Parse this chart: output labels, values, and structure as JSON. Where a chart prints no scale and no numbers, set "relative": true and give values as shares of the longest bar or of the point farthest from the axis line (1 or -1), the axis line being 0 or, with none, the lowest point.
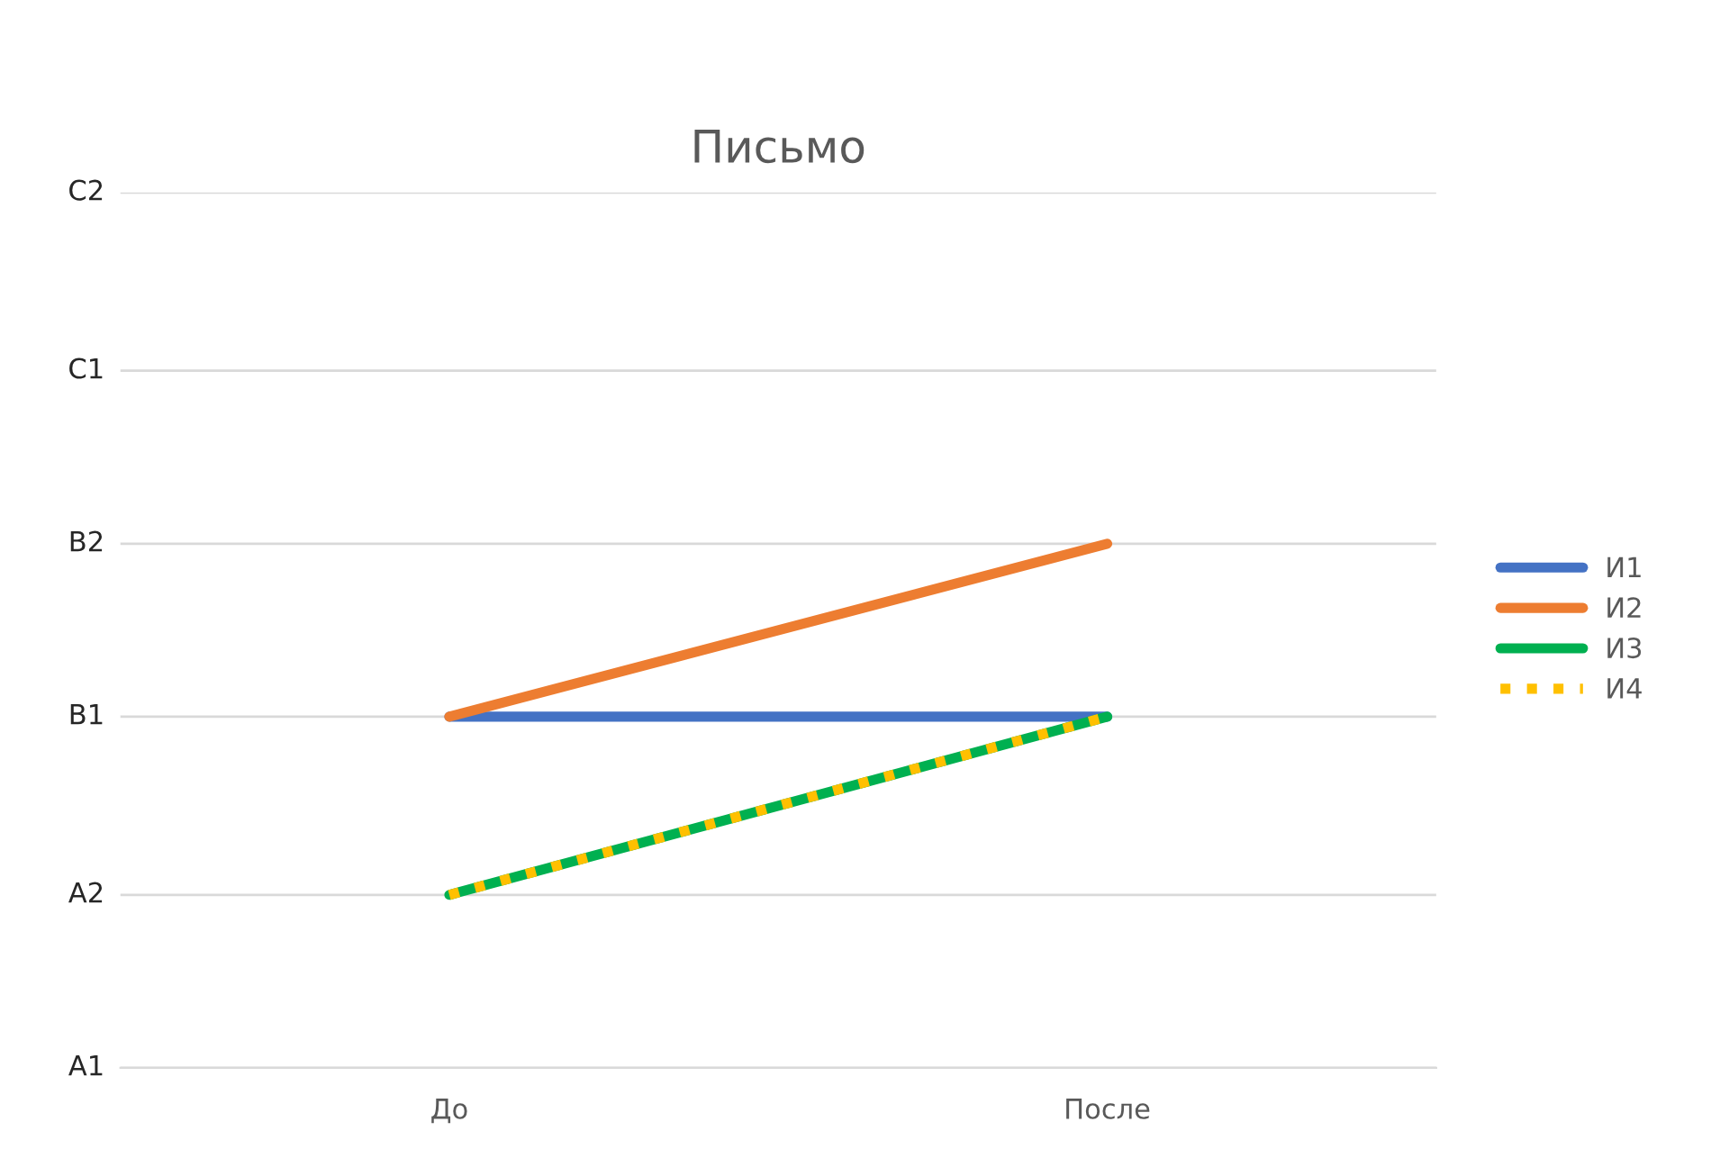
{
  "chart_data": {
    "type": "line",
    "title": "Письмо",
    "relative": true,
    "categories": [
      "До",
      "После"
    ],
    "series": [
      {
        "name": "И1",
        "color": "#4472c4",
        "values": [
          0.67,
          0.67
        ],
        "line_style": "solid"
      },
      {
        "name": "И2",
        "color": "#ed7d31",
        "values": [
          0.67,
          1
        ],
        "line_style": "solid"
      },
      {
        "name": "И3",
        "color": "#00b050",
        "values": [
          0.33,
          0.67
        ],
        "line_style": "solid"
      },
      {
        "name": "И4",
        "color": "#ffc000",
        "values": [
          0.33,
          0.67
        ],
        "line_style": "dotted"
      }
    ],
    "ref_lines": [
      {
        "axis": "y",
        "value": 0,
        "label": "A1",
        "color": "#d9d9d9"
      },
      {
        "axis": "y",
        "value": 0.33,
        "label": "A2",
        "color": "#d9d9d9"
      },
      {
        "axis": "y",
        "value": 0.67,
        "label": "B1",
        "color": "#d9d9d9"
      },
      {
        "axis": "y",
        "value": 1,
        "label": "B2",
        "color": "#d9d9d9"
      },
      {
        "axis": "y",
        "value": 1.33,
        "label": "C1",
        "color": "#d9d9d9"
      },
      {
        "axis": "y",
        "value": 1.67,
        "label": "C2",
        "color": "#d9d9d9"
      }
    ],
    "legend": "right",
    "marker": "none"
  }
}
